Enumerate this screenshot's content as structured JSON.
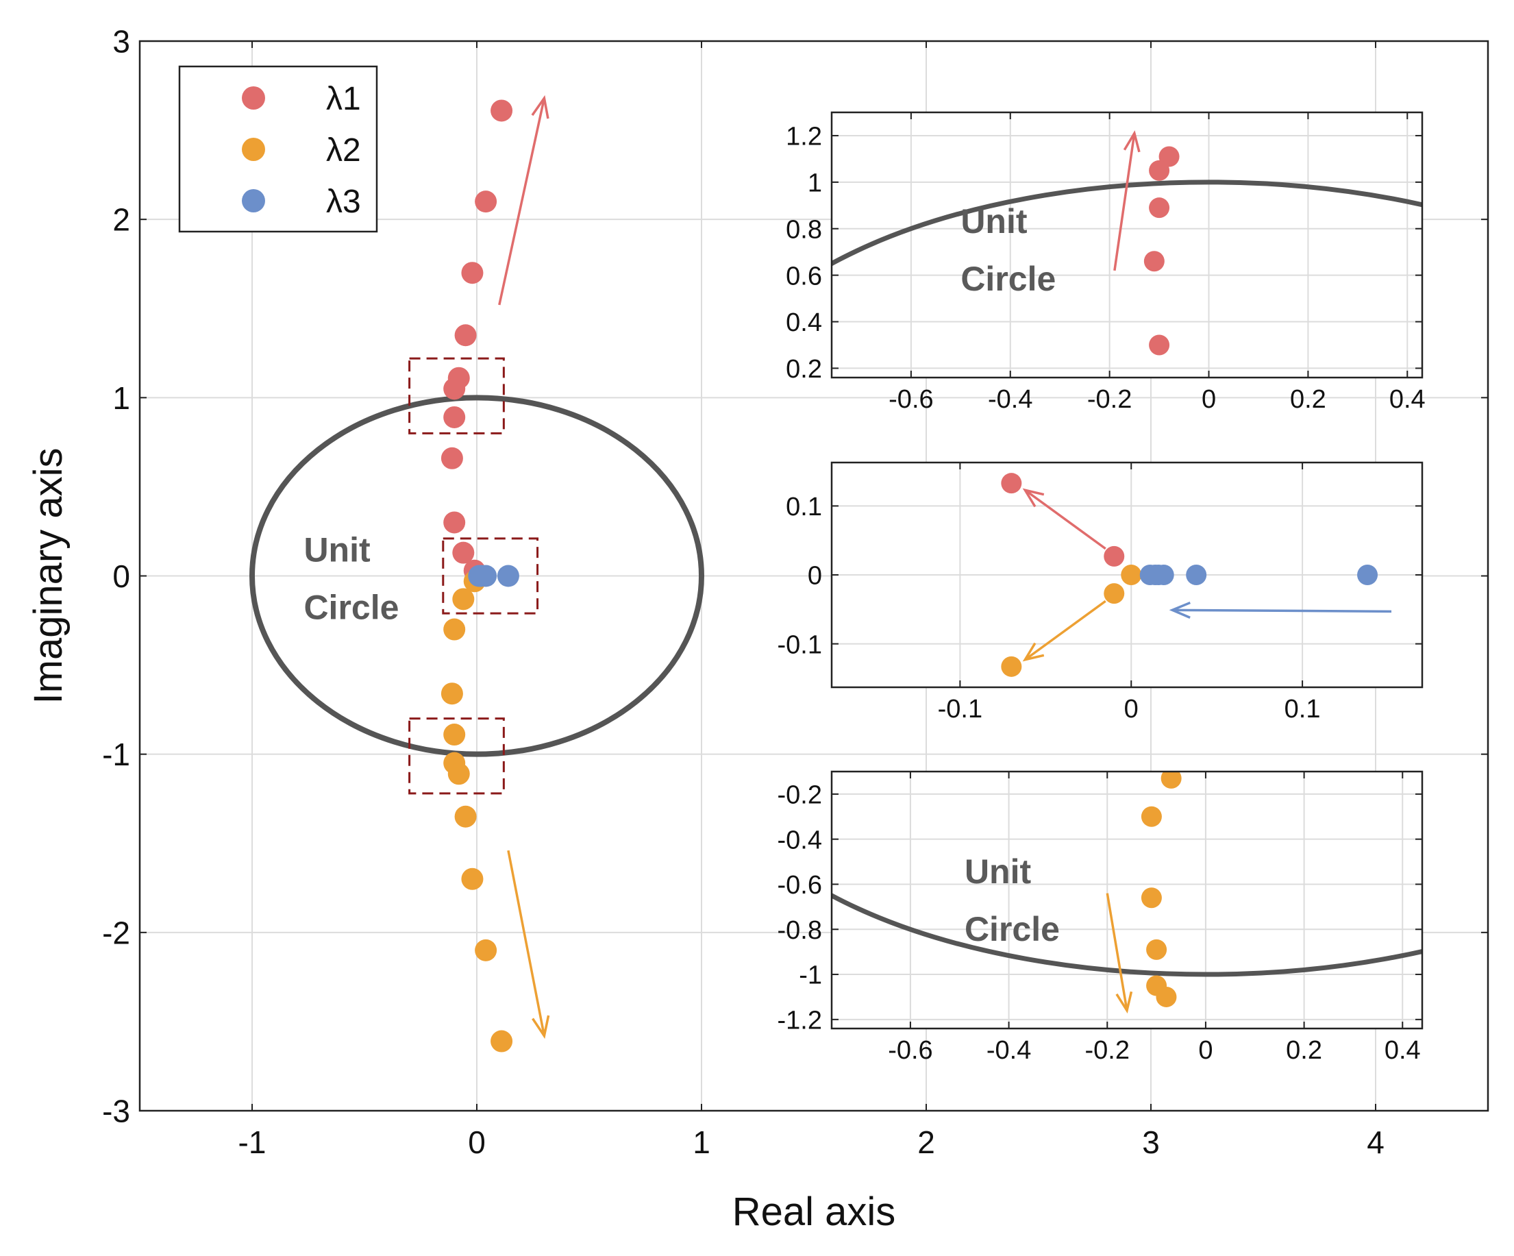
{
  "colors": {
    "lambda1": "#E06C6C",
    "lambda2": "#EDA033",
    "lambda3": "#6C8FCA",
    "unit_circle": "#555555",
    "box": "#8B1A1A",
    "grid": "#DCDCDC",
    "axis": "#222222"
  },
  "chart_data": [
    {
      "id": "main",
      "type": "scatter",
      "xlabel": "Real axis",
      "ylabel": "Imaginary axis",
      "xlim": [
        -1.5,
        4.5
      ],
      "ylim": [
        -3,
        3
      ],
      "xticks": [
        -1,
        0,
        1,
        2,
        3,
        4
      ],
      "yticks": [
        -3,
        -2,
        -1,
        0,
        1,
        2,
        3
      ],
      "grid": true,
      "legend": {
        "position": "top-left",
        "entries": [
          "λ1",
          "λ2",
          "λ3"
        ]
      },
      "annotation": {
        "line1": "Unit",
        "line2": "Circle",
        "at": [
          -0.77,
          0.0
        ]
      },
      "unit_circle": {
        "center": [
          0,
          0
        ],
        "radius": 1
      },
      "zoom_boxes": [
        {
          "x": [
            -0.3,
            0.12
          ],
          "y": [
            0.8,
            1.22
          ]
        },
        {
          "x": [
            -0.15,
            0.27
          ],
          "y": [
            -0.21,
            0.21
          ]
        },
        {
          "x": [
            -0.3,
            0.12
          ],
          "y": [
            -1.22,
            -0.8
          ]
        }
      ],
      "arrows": [
        {
          "series": "λ1",
          "from": [
            0.1,
            1.52
          ],
          "to": [
            0.3,
            2.68
          ]
        },
        {
          "series": "λ2",
          "from": [
            0.14,
            -1.54
          ],
          "to": [
            0.3,
            -2.58
          ]
        }
      ],
      "series": [
        {
          "name": "λ1",
          "points": [
            [
              0.11,
              2.61
            ],
            [
              0.04,
              2.1
            ],
            [
              -0.02,
              1.7
            ],
            [
              -0.05,
              1.35
            ],
            [
              -0.08,
              1.11
            ],
            [
              -0.1,
              1.05
            ],
            [
              -0.1,
              0.89
            ],
            [
              -0.11,
              0.66
            ],
            [
              -0.1,
              0.3
            ],
            [
              -0.06,
              0.13
            ],
            [
              -0.01,
              0.03
            ]
          ]
        },
        {
          "name": "λ2",
          "points": [
            [
              -0.01,
              -0.03
            ],
            [
              -0.06,
              -0.13
            ],
            [
              -0.1,
              -0.3
            ],
            [
              -0.11,
              -0.66
            ],
            [
              -0.1,
              -0.89
            ],
            [
              -0.1,
              -1.05
            ],
            [
              -0.08,
              -1.11
            ],
            [
              -0.05,
              -1.35
            ],
            [
              -0.02,
              -1.7
            ],
            [
              0.04,
              -2.1
            ],
            [
              0.11,
              -2.61
            ]
          ]
        },
        {
          "name": "λ3",
          "points": [
            [
              0.01,
              0.0
            ],
            [
              0.02,
              0.0
            ],
            [
              0.04,
              0.0
            ],
            [
              0.14,
              0.0
            ]
          ]
        }
      ]
    },
    {
      "id": "inset-top",
      "type": "scatter",
      "xlim": [
        -0.76,
        0.43
      ],
      "ylim": [
        0.16,
        1.3
      ],
      "xticks": [
        -0.6,
        -0.4,
        -0.2,
        0,
        0.2,
        0.4
      ],
      "yticks": [
        0.2,
        0.4,
        0.6,
        0.8,
        1,
        1.2
      ],
      "xtick_labels": [
        "-0.6",
        "-0.4",
        "-0.2",
        "0",
        "0.2",
        "0.4"
      ],
      "ytick_labels": [
        "0.2",
        "0.4",
        "0.6",
        "0.8",
        "1",
        "1.2"
      ],
      "grid": true,
      "annotation": {
        "line1": "Unit",
        "line2": "Circle",
        "at": [
          -0.5,
          0.72
        ]
      },
      "unit_circle": {
        "center": [
          0,
          0
        ],
        "radius": 1
      },
      "arrows": [
        {
          "series": "λ1",
          "from": [
            -0.19,
            0.62
          ],
          "to": [
            -0.15,
            1.21
          ]
        }
      ],
      "series": [
        {
          "name": "λ1",
          "points": [
            [
              -0.08,
              1.11
            ],
            [
              -0.1,
              1.05
            ],
            [
              -0.1,
              0.89
            ],
            [
              -0.11,
              0.66
            ],
            [
              -0.1,
              0.3
            ]
          ]
        }
      ]
    },
    {
      "id": "inset-mid",
      "type": "scatter",
      "xlim": [
        -0.175,
        0.17
      ],
      "ylim": [
        -0.163,
        0.163
      ],
      "xticks": [
        -0.1,
        0,
        0.1
      ],
      "yticks": [
        -0.1,
        0,
        0.1
      ],
      "xtick_labels": [
        "-0.1",
        "0",
        "0.1"
      ],
      "ytick_labels": [
        "-0.1",
        "0",
        "0.1"
      ],
      "grid": true,
      "arrows": [
        {
          "series": "λ1",
          "from": [
            -0.015,
            0.038
          ],
          "to": [
            -0.062,
            0.123
          ]
        },
        {
          "series": "λ2",
          "from": [
            -0.015,
            -0.038
          ],
          "to": [
            -0.062,
            -0.123
          ]
        },
        {
          "series": "λ3",
          "from": [
            0.152,
            -0.053
          ],
          "to": [
            0.024,
            -0.051
          ]
        }
      ],
      "series": [
        {
          "name": "λ1",
          "points": [
            [
              -0.07,
              0.133
            ],
            [
              -0.01,
              0.027
            ]
          ]
        },
        {
          "name": "λ2",
          "points": [
            [
              -0.07,
              -0.133
            ],
            [
              -0.01,
              -0.027
            ],
            [
              0.0,
              0.0
            ]
          ]
        },
        {
          "name": "λ3",
          "points": [
            [
              0.011,
              0.0
            ],
            [
              0.014,
              0.0
            ],
            [
              0.016,
              0.0
            ],
            [
              0.019,
              0.0
            ],
            [
              0.038,
              0.0
            ],
            [
              0.138,
              0.0
            ]
          ]
        }
      ]
    },
    {
      "id": "inset-bottom",
      "type": "scatter",
      "xlim": [
        -0.76,
        0.44
      ],
      "ylim": [
        -1.24,
        -0.1
      ],
      "xticks": [
        -0.6,
        -0.4,
        -0.2,
        0,
        0.2,
        0.4
      ],
      "yticks": [
        -0.2,
        -0.4,
        -0.6,
        -0.8,
        -1,
        -1.2
      ],
      "xtick_labels": [
        "-0.6",
        "-0.4",
        "-0.2",
        "0",
        "0.2",
        "0.4"
      ],
      "ytick_labels": [
        "-0.2",
        "-0.4",
        "-0.6",
        "-0.8",
        "-1",
        "-1.2"
      ],
      "grid": true,
      "annotation": {
        "line1": "Unit",
        "line2": "Circle",
        "at": [
          -0.49,
          -0.66
        ]
      },
      "unit_circle": {
        "center": [
          0,
          0
        ],
        "radius": 1
      },
      "arrows": [
        {
          "series": "λ2",
          "from": [
            -0.2,
            -0.64
          ],
          "to": [
            -0.16,
            -1.16
          ]
        }
      ],
      "series": [
        {
          "name": "λ2",
          "points": [
            [
              -0.07,
              -0.13
            ],
            [
              -0.11,
              -0.3
            ],
            [
              -0.11,
              -0.66
            ],
            [
              -0.1,
              -0.89
            ],
            [
              -0.1,
              -1.05
            ],
            [
              -0.08,
              -1.1
            ]
          ]
        }
      ]
    }
  ]
}
